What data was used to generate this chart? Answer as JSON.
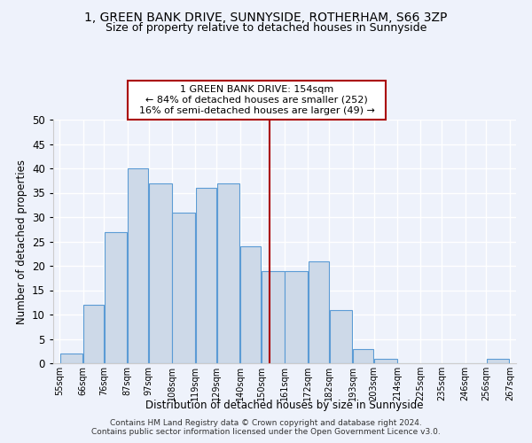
{
  "title": "1, GREEN BANK DRIVE, SUNNYSIDE, ROTHERHAM, S66 3ZP",
  "subtitle": "Size of property relative to detached houses in Sunnyside",
  "xlabel": "Distribution of detached houses by size in Sunnyside",
  "ylabel": "Number of detached properties",
  "footer_line1": "Contains HM Land Registry data © Crown copyright and database right 2024.",
  "footer_line2": "Contains public sector information licensed under the Open Government Licence v3.0.",
  "annotation_line1": "1 GREEN BANK DRIVE: 154sqm",
  "annotation_line2": "← 84% of detached houses are smaller (252)",
  "annotation_line3": "16% of semi-detached houses are larger (49) →",
  "property_line_x": 154,
  "bar_edges": [
    55,
    66,
    76,
    87,
    97,
    108,
    119,
    129,
    140,
    150,
    161,
    172,
    182,
    193,
    203,
    214,
    225,
    235,
    246,
    256,
    267
  ],
  "bar_heights": [
    2,
    12,
    27,
    40,
    37,
    31,
    36,
    37,
    24,
    19,
    19,
    21,
    11,
    3,
    1,
    0,
    0,
    0,
    0,
    1
  ],
  "bar_color": "#cdd9e8",
  "bar_edge_color": "#5b9bd5",
  "line_color": "#aa0000",
  "background_color": "#eef2fb",
  "grid_color": "#ffffff",
  "ylim": [
    0,
    50
  ],
  "yticks": [
    0,
    5,
    10,
    15,
    20,
    25,
    30,
    35,
    40,
    45,
    50
  ]
}
